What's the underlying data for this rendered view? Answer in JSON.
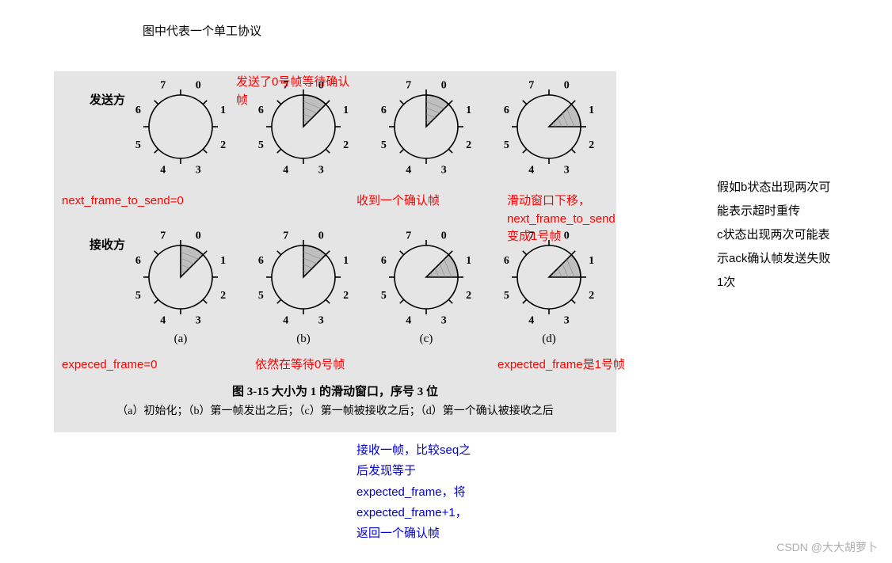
{
  "title": "图中代表一个单工协议",
  "panel": {
    "bg": "#e5e5e5",
    "row_labels": {
      "sender": "发送方",
      "receiver": "接收方"
    },
    "col_labels": [
      "(a)",
      "(b)",
      "(c)",
      "(d)"
    ],
    "caption": "图 3-15  大小为 1 的滑动窗口，序号 3 位",
    "subcaption": "（a）初始化；（b）第一帧发出之后；（c）第一帧被接收之后；（d）第一个确认被接收之后",
    "clock": {
      "radius": 40,
      "tick_len": 7,
      "stroke": "#000000",
      "stroke_width": 1.6,
      "num_font": 14,
      "numbers": [
        "0",
        "1",
        "2",
        "3",
        "4",
        "5",
        "6",
        "7"
      ]
    },
    "clocks": {
      "sender": [
        {
          "shaded": null
        },
        {
          "shaded": [
            0,
            1
          ]
        },
        {
          "shaded": [
            0,
            1
          ]
        },
        {
          "shaded": [
            1,
            2
          ]
        }
      ],
      "receiver": [
        {
          "shaded": [
            0,
            1
          ]
        },
        {
          "shaded": [
            0,
            1
          ]
        },
        {
          "shaded": [
            1,
            2
          ]
        },
        {
          "shaded": [
            1,
            2
          ]
        }
      ]
    }
  },
  "annotations": {
    "a1": "发送了0号帧等待确认\n帧",
    "a2": "next_frame_to_send=0",
    "a3": "收到一个确认帧",
    "a4": "滑动窗口下移，\nnext_frame_to_send\n变成1号帧",
    "a5": "expeced_frame=0",
    "a6": "依然在等待0号帧",
    "a7": "expected_frame是1号帧",
    "a8": "接收一帧，比较seq之\n后发现等于\nexpected_frame，将\nexpected_frame+1，\n返回一个确认帧",
    "side": "假如b状态出现两次可\n能表示超时重传\nc状态出现两次可能表\n示ack确认帧发送失败\n1次"
  },
  "watermark": "CSDN @大大胡萝卜",
  "colors": {
    "red": "#ff0000",
    "blue": "#0000cd",
    "black": "#000000"
  }
}
